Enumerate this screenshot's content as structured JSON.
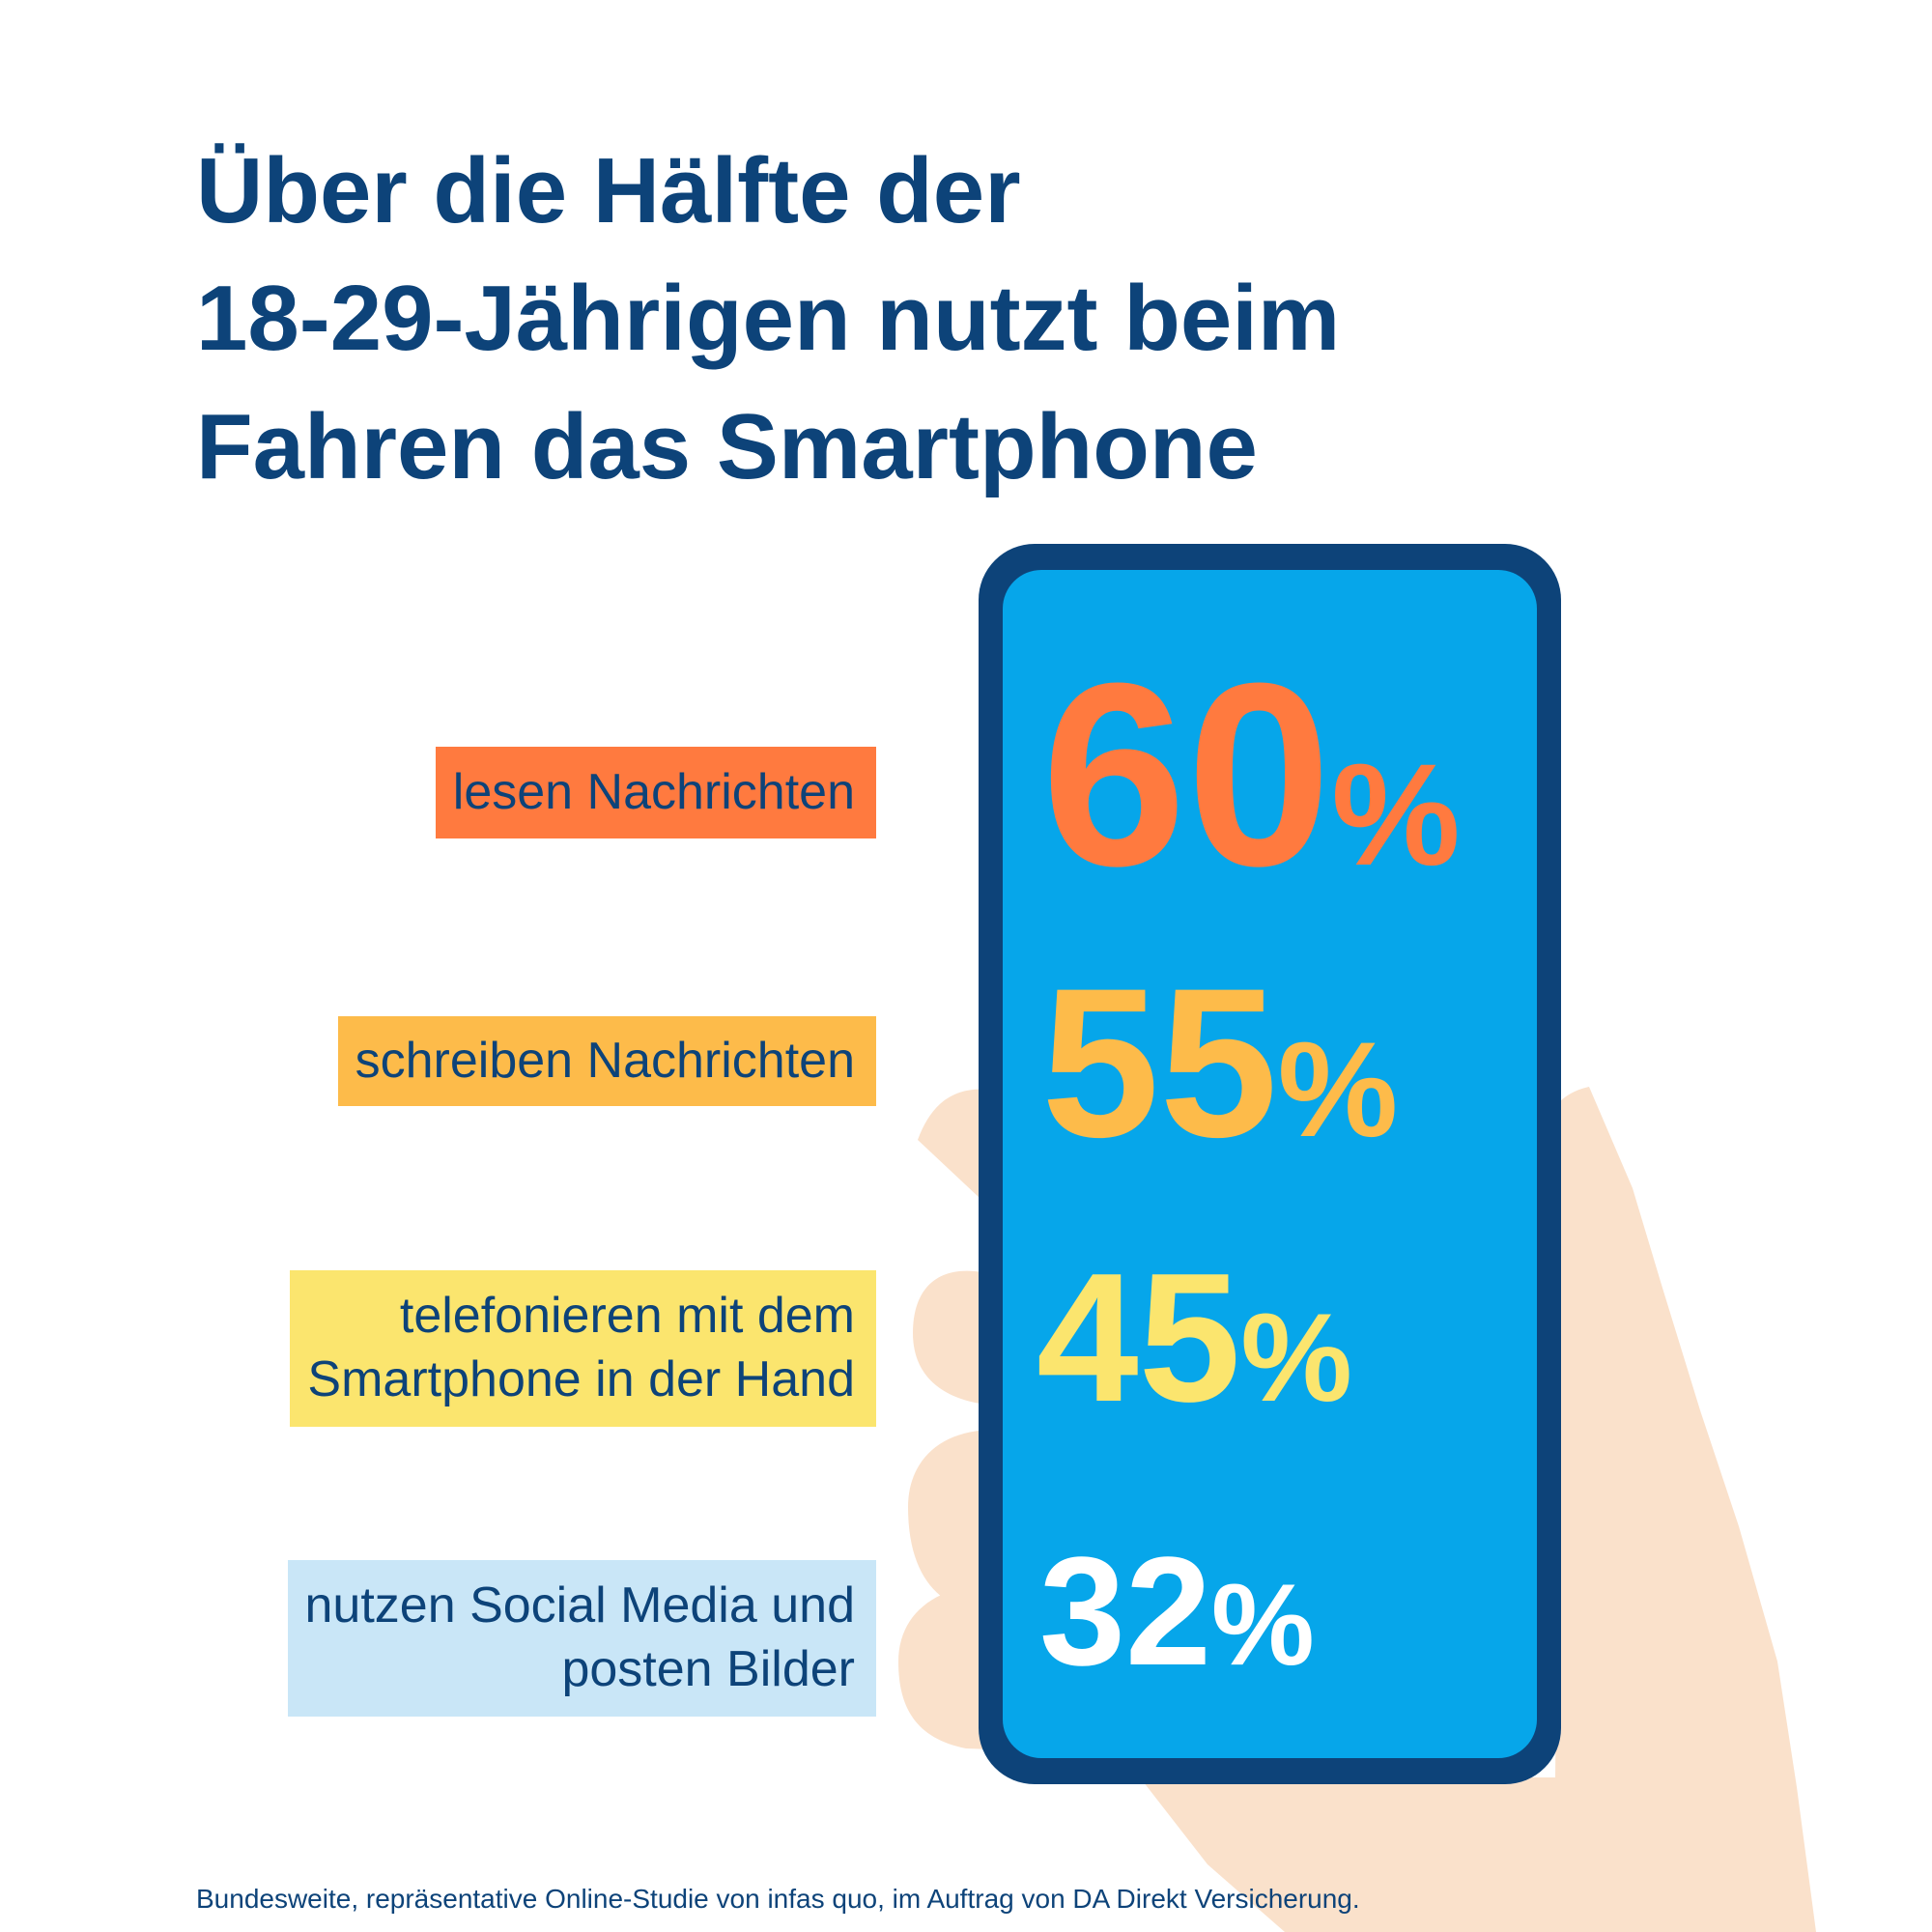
{
  "title": {
    "lines": [
      "Über die Hälfte der",
      "18-29-Jährigen nutzt beim",
      "Fahren das Smartphone"
    ]
  },
  "colors": {
    "navy": "#0d4379",
    "screen": "#06a6ea",
    "skin": "#fae1cb",
    "orange": "#ff7a3f",
    "amber": "#fdbb4a",
    "yellow": "#fbe56e",
    "light_blue": "#c9e6f7",
    "white": "#ffffff"
  },
  "chart_data": {
    "type": "infographic",
    "title": "Über die Hälfte der 18-29-Jährigen nutzt beim Fahren das Smartphone",
    "unit": "%",
    "items": [
      {
        "label": "lesen Nachrichten",
        "label_lines": [
          "lesen Nachrichten"
        ],
        "value": 60,
        "value_text": "60",
        "color": "#ff7a3f",
        "label_bg": "#ff7a3f"
      },
      {
        "label": "schreiben Nachrichten",
        "label_lines": [
          "schreiben Nachrichten"
        ],
        "value": 55,
        "value_text": "55",
        "color": "#fdbb4a",
        "label_bg": "#fdbb4a"
      },
      {
        "label": "telefonieren mit dem Smartphone in der Hand",
        "label_lines": [
          "telefonieren mit dem",
          "Smartphone in der Hand"
        ],
        "value": 45,
        "value_text": "45",
        "color": "#fbe56e",
        "label_bg": "#fbe56e"
      },
      {
        "label": "nutzen Social Media und posten Bilder",
        "label_lines": [
          "nutzen Social Media und",
          "posten Bilder"
        ],
        "value": 32,
        "value_text": "32",
        "color": "#ffffff",
        "label_bg": "#c9e6f7"
      }
    ],
    "percent_sign": "%"
  },
  "source": "Bundesweite, repräsentative Online-Studie von infas quo, im Auftrag von DA Direkt Versicherung."
}
